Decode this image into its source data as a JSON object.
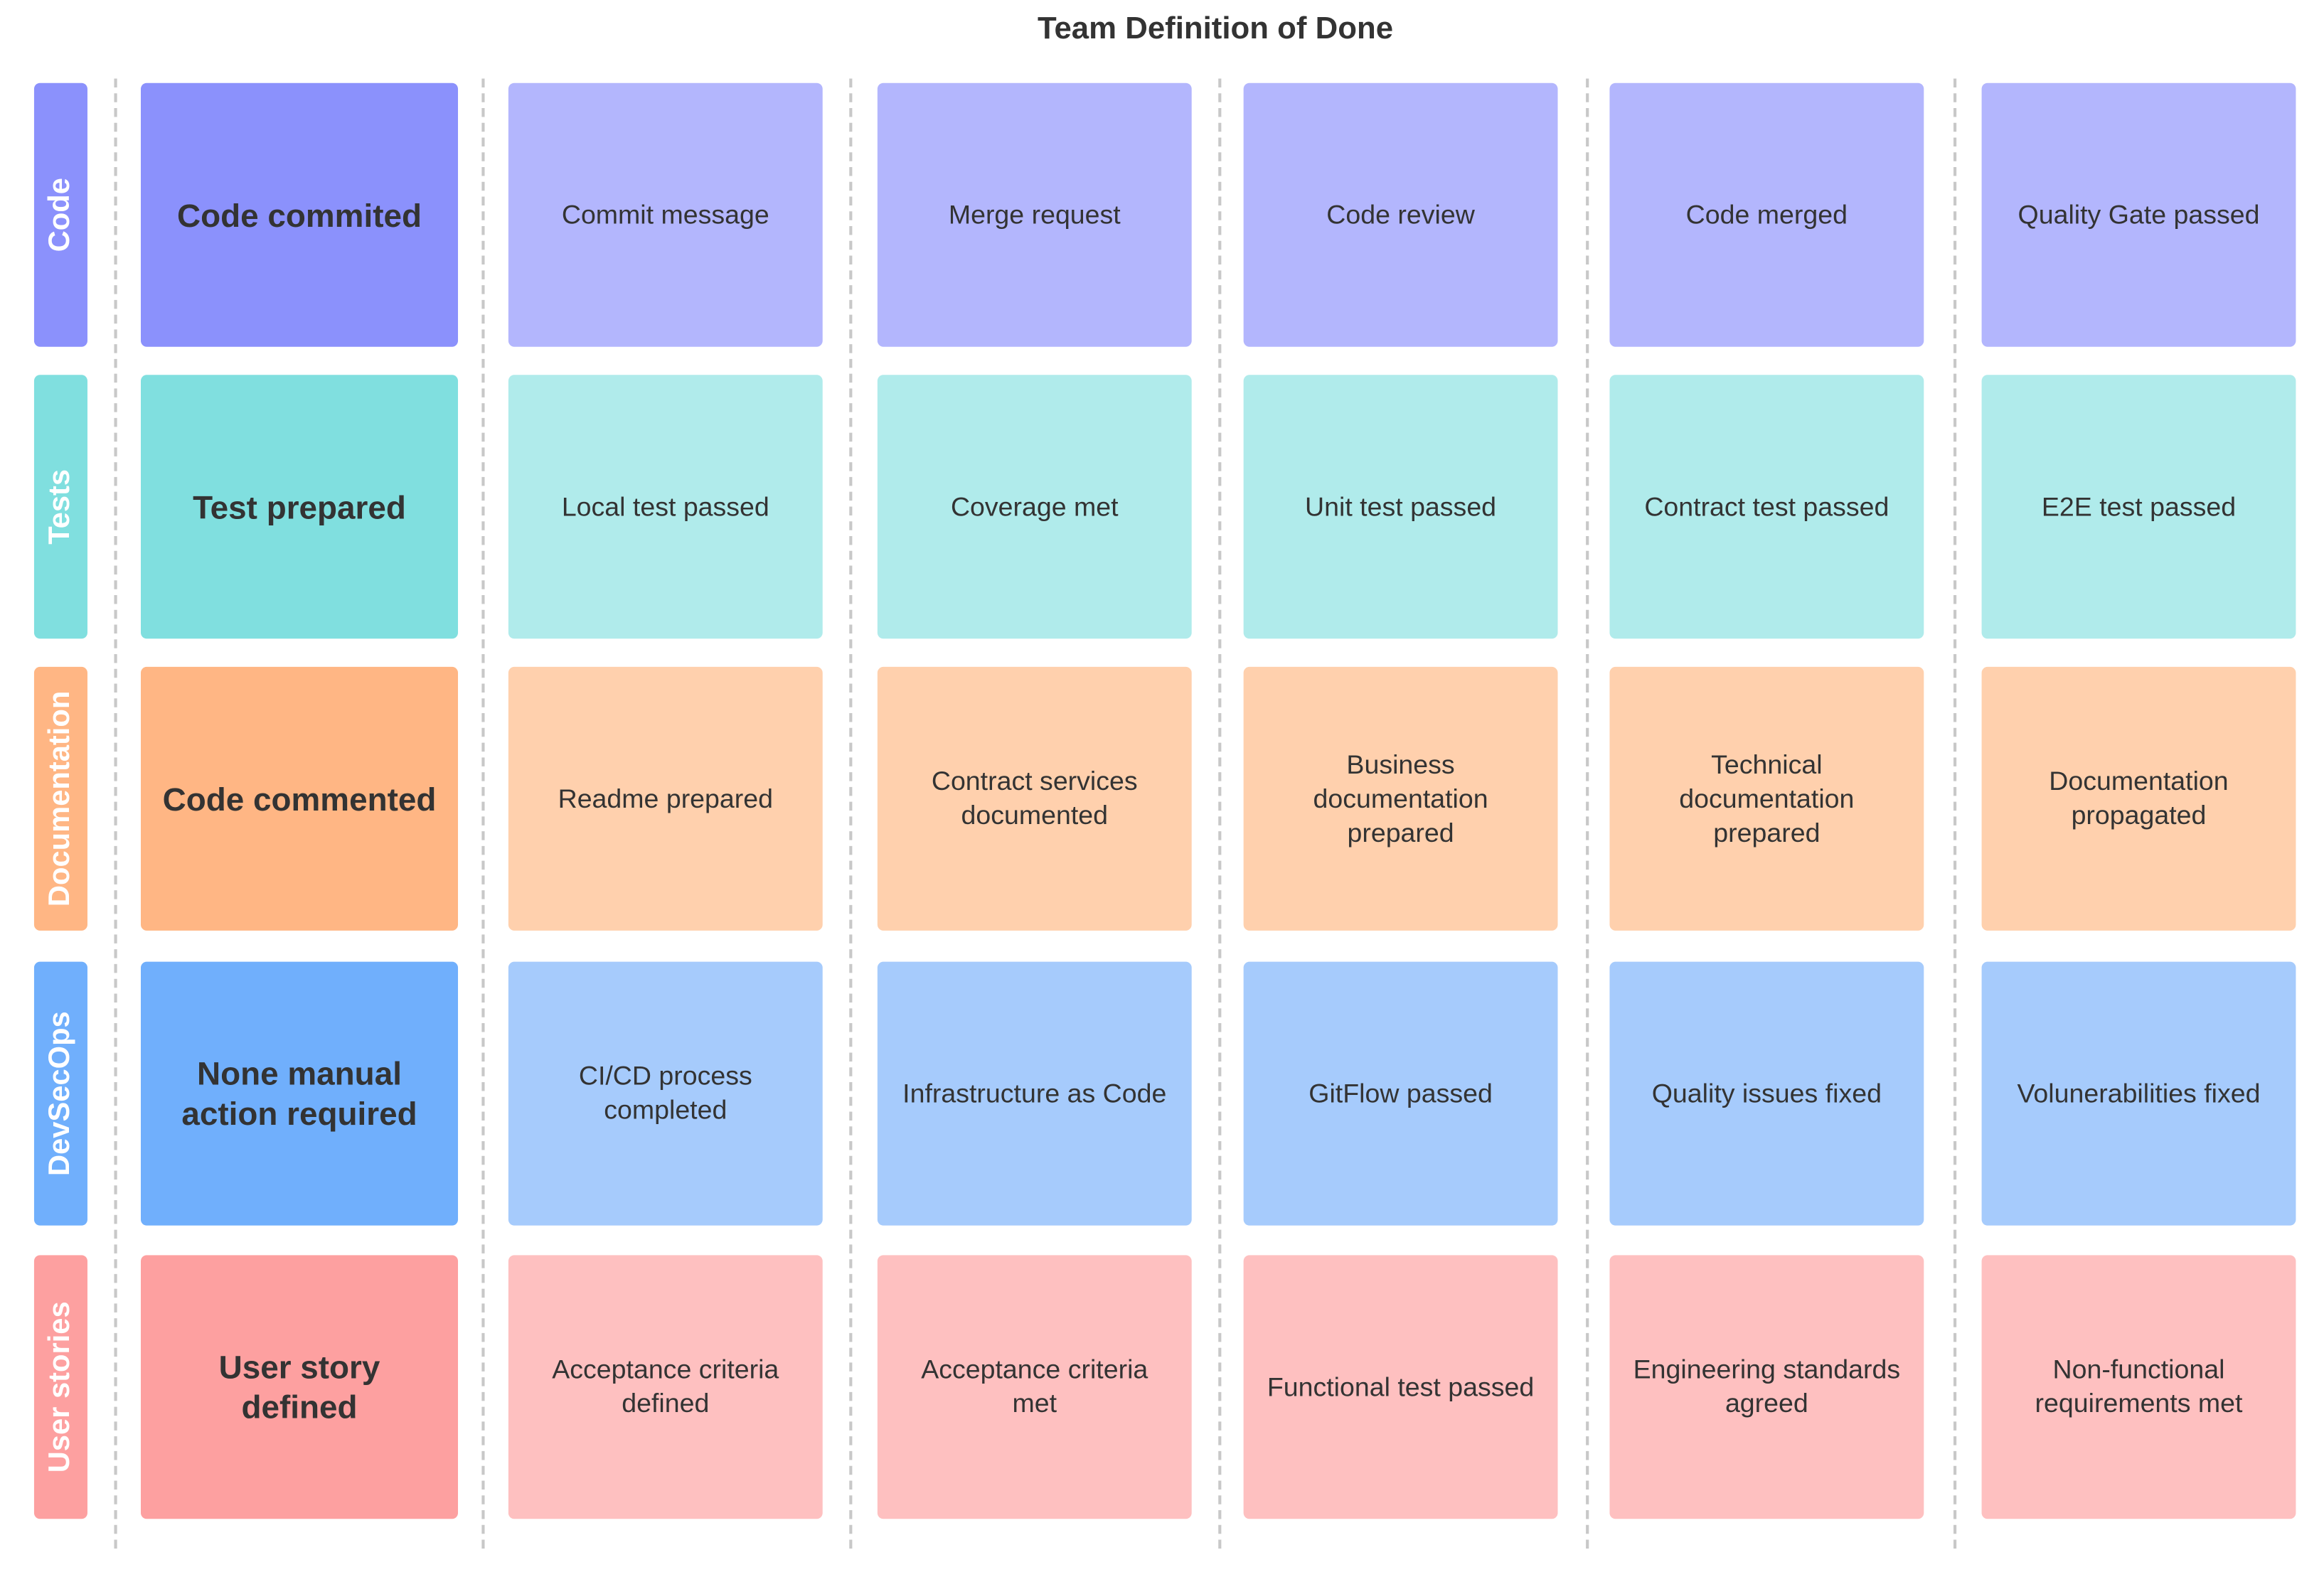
{
  "title": "Team Definition of Done",
  "rows": [
    {
      "label": "Code",
      "main": "Code commited",
      "dark": "#8B91FC",
      "light": "#B3B6FD",
      "items": [
        "Commit message",
        "Merge request",
        "Code review",
        "Code merged",
        "Quality Gate passed"
      ]
    },
    {
      "label": "Tests",
      "main": "Test prepared",
      "dark": "#80DFDF",
      "light": "#B0EBEB",
      "items": [
        "Local test passed",
        "Coverage met",
        "Unit test passed",
        "Contract test passed",
        "E2E test passed"
      ]
    },
    {
      "label": "Documentation",
      "main": "Code commented",
      "dark": "#FFB684",
      "light": "#FFD0AD",
      "items": [
        "Readme prepared",
        "Contract services documented",
        "Business documentation prepared",
        "Technical documentation prepared",
        "Documentation propagated"
      ]
    },
    {
      "label": "DevSecOps",
      "main": "None manual action required",
      "dark": "#70AFFC",
      "light": "#A6CBFC",
      "items": [
        "CI/CD process completed",
        "Infrastructure as Code",
        "GitFlow passed",
        "Quality issues fixed",
        "Volunerabilities fixed"
      ]
    },
    {
      "label": "User stories",
      "main": "User story defined",
      "dark": "#FDA0A0",
      "light": "#FEC0C0",
      "items": [
        "Acceptance criteria defined",
        "Acceptance criteria met",
        "Functional test passed",
        "Engineering standards agreed",
        "Non-functional requirements met"
      ]
    }
  ]
}
